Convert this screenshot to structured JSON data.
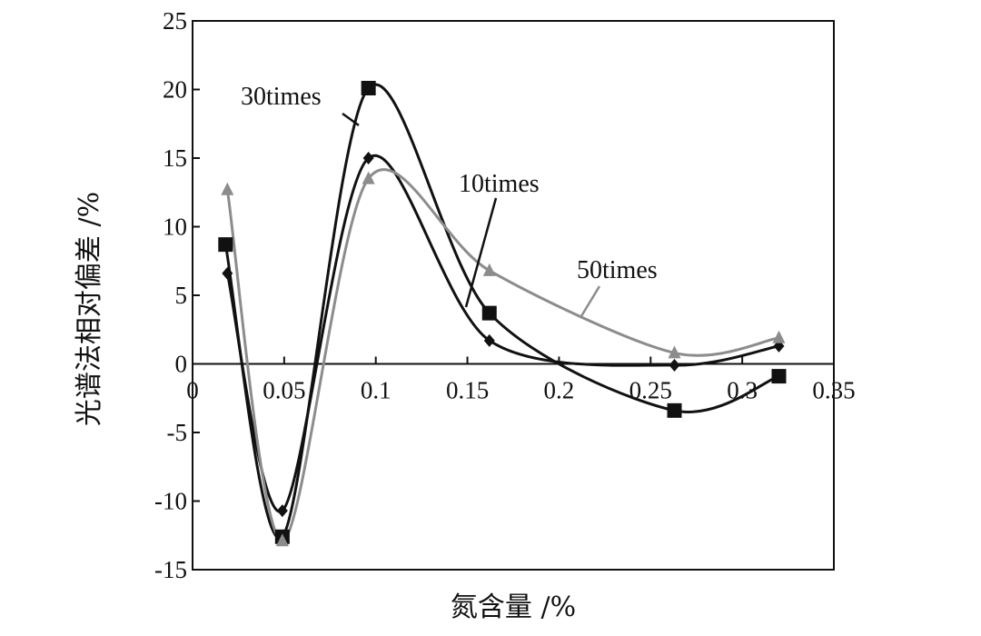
{
  "chart_data": {
    "type": "scatter",
    "title": "",
    "xlabel": "氮含量 /%",
    "ylabel": "光谱法相对偏差 /%",
    "xlim": [
      0,
      0.35
    ],
    "ylim": [
      -15,
      25
    ],
    "xticks": [
      "0",
      "0.05",
      "0.1",
      "0.15",
      "0.2",
      "0.25",
      "0.3",
      "0.35"
    ],
    "yticks": [
      "25",
      "20",
      "15",
      "10",
      "5",
      "0",
      "-5",
      "-10",
      "-15"
    ],
    "grid": false,
    "legend": "none",
    "series": [
      {
        "name": "10times",
        "marker": "diamond",
        "color": "#111111",
        "x": [
          0.019,
          0.049,
          0.096,
          0.162,
          0.263,
          0.32
        ],
        "y": [
          6.6,
          -10.7,
          15.0,
          1.7,
          -0.1,
          1.3
        ]
      },
      {
        "name": "30times",
        "marker": "square",
        "color": "#111111",
        "x": [
          0.018,
          0.049,
          0.096,
          0.162,
          0.263,
          0.32
        ],
        "y": [
          8.7,
          -12.6,
          20.1,
          3.7,
          -3.4,
          -0.9
        ]
      },
      {
        "name": "50times",
        "marker": "triangle",
        "color": "#8c8c8c",
        "x": [
          0.019,
          0.049,
          0.096,
          0.162,
          0.263,
          0.32
        ],
        "y": [
          12.7,
          -12.9,
          13.5,
          6.8,
          0.8,
          1.9
        ]
      }
    ]
  }
}
